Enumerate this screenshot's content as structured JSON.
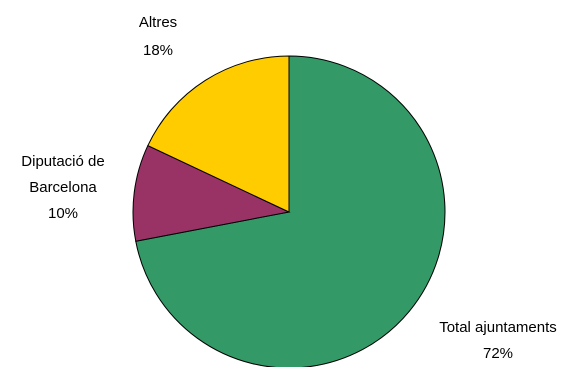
{
  "chart_data": {
    "type": "pie",
    "title": "",
    "start_angle_deg": 0,
    "direction": "clockwise",
    "slices": [
      {
        "label_lines": [
          "Total ajuntaments"
        ],
        "value_label": "72%",
        "value": 72,
        "color": "#339966"
      },
      {
        "label_lines": [
          "Diputació de",
          "Barcelona"
        ],
        "value_label": "10%",
        "value": 10,
        "color": "#993366"
      },
      {
        "label_lines": [
          "Altres"
        ],
        "value_label": "18%",
        "value": 18,
        "color": "#ffcc00"
      }
    ]
  }
}
